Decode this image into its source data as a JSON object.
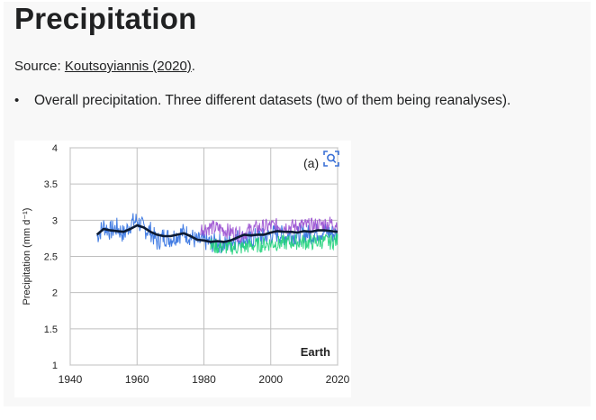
{
  "page": {
    "title": "Precipitation",
    "source_prefix": "Source: ",
    "source_link": "Koutsoyiannis (2020)",
    "source_suffix": ".",
    "bullet": "Overall precipitation. Three different datasets (two of them being reanalyses)."
  },
  "figure": {
    "zoom_icon": "magnify-icon",
    "panel_label": "(a)"
  },
  "chart_data": {
    "type": "line",
    "title": "",
    "xlabel": "",
    "ylabel": "Precipitation (mm d⁻¹)",
    "annotation": "Earth",
    "panel_label": "(a)",
    "xlim": [
      1940,
      2020
    ],
    "ylim": [
      1,
      4
    ],
    "x_ticks": [
      1940,
      1960,
      1980,
      2000,
      2020
    ],
    "y_ticks": [
      1,
      1.5,
      2,
      2.5,
      3,
      3.5,
      4
    ],
    "grid": true,
    "colors": {
      "blue": "#2f6fe0",
      "purple": "#9a4fd0",
      "green": "#1fd17a",
      "black": "#0b1a33",
      "grid": "#bfbfbf"
    },
    "series": [
      {
        "color": "#2f6fe0",
        "x": [
          1948,
          1950,
          1952,
          1954,
          1956,
          1958,
          1960,
          1962,
          1964,
          1966,
          1968,
          1970,
          1972,
          1974,
          1976,
          1978,
          1980,
          1982,
          1984,
          1986,
          1988,
          1990,
          1992,
          1994,
          1996,
          1998,
          2000,
          2002,
          2004,
          2006,
          2008,
          2010,
          2012,
          2014,
          2016,
          2018,
          2020
        ],
        "y": [
          2.78,
          2.92,
          2.85,
          2.9,
          2.8,
          2.95,
          3.0,
          2.88,
          2.85,
          2.7,
          2.78,
          2.75,
          2.8,
          2.83,
          2.78,
          2.7,
          2.72,
          2.68,
          2.7,
          2.65,
          2.7,
          2.75,
          2.75,
          2.72,
          2.78,
          2.76,
          2.8,
          2.82,
          2.78,
          2.8,
          2.78,
          2.82,
          2.8,
          2.83,
          2.85,
          2.82,
          2.8
        ],
        "spread": 0.14
      },
      {
        "color": "#9a4fd0",
        "x": [
          1979,
          1982,
          1985,
          1988,
          1991,
          1994,
          1997,
          2000,
          2003,
          2006,
          2009,
          2012,
          2015,
          2018,
          2020
        ],
        "y": [
          2.88,
          2.9,
          2.88,
          2.84,
          2.8,
          2.87,
          2.9,
          2.92,
          2.92,
          2.91,
          2.93,
          2.92,
          2.94,
          2.96,
          2.95
        ],
        "spread": 0.11
      },
      {
        "color": "#1fd17a",
        "x": [
          1982,
          1985,
          1988,
          1991,
          1994,
          1997,
          2000,
          2003,
          2006,
          2009,
          2012,
          2015,
          2018,
          2020
        ],
        "y": [
          2.65,
          2.63,
          2.63,
          2.62,
          2.65,
          2.66,
          2.68,
          2.68,
          2.7,
          2.7,
          2.69,
          2.71,
          2.7,
          2.72
        ],
        "spread": 0.11
      },
      {
        "color": "#0b1a33",
        "x": [
          1948,
          1950,
          1952,
          1954,
          1956,
          1958,
          1960,
          1962,
          1964,
          1966,
          1968,
          1970,
          1972,
          1974,
          1976,
          1978,
          1980,
          1982,
          1984,
          1986,
          1988,
          1990,
          1992,
          1994,
          1996,
          1998,
          2000,
          2002,
          2004,
          2006,
          2008,
          2010,
          2012,
          2014,
          2016,
          2018,
          2020
        ],
        "y": [
          2.8,
          2.88,
          2.86,
          2.85,
          2.84,
          2.88,
          2.93,
          2.9,
          2.84,
          2.8,
          2.78,
          2.78,
          2.8,
          2.82,
          2.78,
          2.73,
          2.72,
          2.7,
          2.71,
          2.7,
          2.72,
          2.76,
          2.8,
          2.79,
          2.8,
          2.8,
          2.83,
          2.85,
          2.84,
          2.84,
          2.83,
          2.85,
          2.84,
          2.86,
          2.86,
          2.85,
          2.84
        ],
        "spread": 0
      }
    ]
  }
}
